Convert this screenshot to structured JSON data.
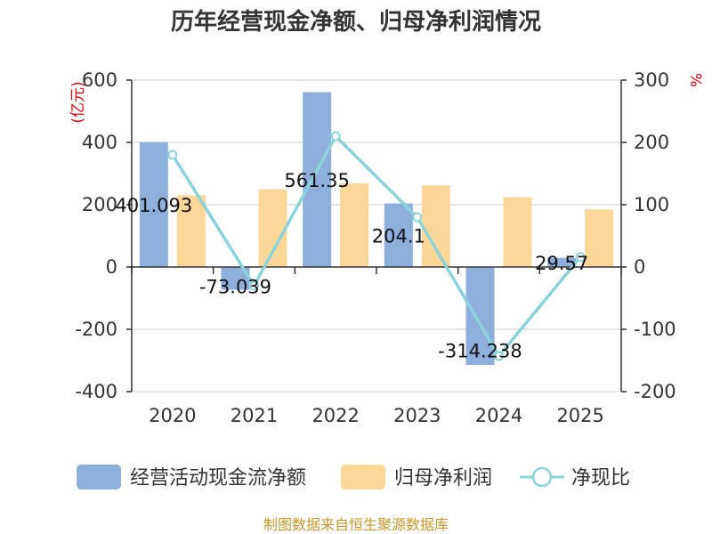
{
  "colors": {
    "cash_flow": "#8eaedb",
    "net_profit": "#fdd797",
    "ratio": "#8bd3db",
    "axis": "#333333",
    "grid": "#cccccc",
    "unit": "#e60012",
    "source": "#c9962b"
  },
  "chart_data": {
    "type": "bar",
    "title": "历年经营现金净额、归母净利润情况",
    "categories": [
      "2020",
      "2021",
      "2022",
      "2023",
      "2024",
      "2025"
    ],
    "y_left": {
      "label": "(亿元)",
      "range": [
        -400,
        600
      ],
      "ticks": [
        -400,
        -200,
        0,
        200,
        400,
        600
      ]
    },
    "y_right": {
      "label": "%",
      "range": [
        -200,
        300
      ],
      "ticks": [
        -200,
        -100,
        0,
        100,
        200,
        300
      ]
    },
    "series": [
      {
        "name": "经营活动现金流净额",
        "kind": "bar",
        "axis": "left",
        "values": [
          401.093,
          -73.039,
          561.35,
          204.1,
          -314.238,
          29.57
        ],
        "labels": [
          "401.093",
          "-73.039",
          "561.35",
          "204.1",
          "-314.238",
          "29.57"
        ]
      },
      {
        "name": "归母净利润",
        "kind": "bar",
        "axis": "left",
        "values": [
          230,
          250,
          268,
          262,
          224,
          185
        ]
      },
      {
        "name": "净现比",
        "kind": "line",
        "axis": "right",
        "values": [
          180,
          -30,
          210,
          80,
          -143,
          16
        ]
      }
    ],
    "legend_position": "bottom",
    "grid": true
  },
  "source_text": "制图数据来自恒生聚源数据库"
}
